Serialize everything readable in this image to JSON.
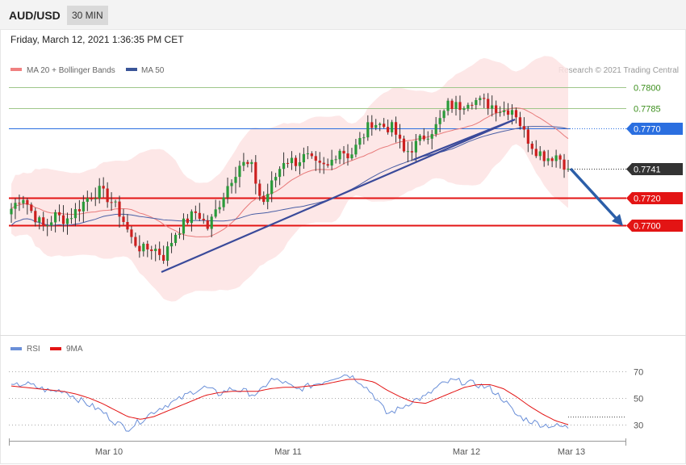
{
  "header": {
    "symbol": "AUD/USD",
    "timeframe": "30 MIN",
    "datetime": "Friday, March 12, 2021 1:36:35 PM CET"
  },
  "legend": {
    "ma20_bb": "MA 20 + Bollinger Bands",
    "ma50": "MA 50",
    "credit": "Research © 2021 Trading Central",
    "rsi": "RSI",
    "rsi_ma": "9MA"
  },
  "colors": {
    "bull": "#2a9a3a",
    "bear": "#cc1f1f",
    "ma20": "#e87a7a",
    "band_fill": "#fde3e3",
    "ma50": "#4a5fa5",
    "resistance_green": "#9fc78a",
    "blue_level": "#2b6fe0",
    "support_red": "#e31414",
    "trendline": "#3a4a9a",
    "arrow": "#2b5ea8",
    "rsi": "#6a8fd8",
    "rsi_ma": "#e31414"
  },
  "chart_data": [
    {
      "type": "candlestick",
      "title": "AUD/USD 30 MIN",
      "ylim": [
        0.764,
        0.781
      ],
      "x_ticks": [
        "Mar 10",
        "Mar 11",
        "Mar 12",
        "Mar 13"
      ],
      "levels": [
        {
          "value": 0.78,
          "label": "0.7800",
          "kind": "resistance"
        },
        {
          "value": 0.7785,
          "label": "0.7785",
          "kind": "resistance"
        },
        {
          "value": 0.777,
          "label": "0.7770",
          "kind": "pivot"
        },
        {
          "value": 0.7741,
          "label": "0.7741",
          "kind": "last"
        },
        {
          "value": 0.772,
          "label": "0.7720",
          "kind": "support"
        },
        {
          "value": 0.77,
          "label": "0.7700",
          "kind": "support"
        }
      ],
      "key_closes": [
        0.7712,
        0.7722,
        0.7708,
        0.7698,
        0.7707,
        0.7704,
        0.7711,
        0.772,
        0.7725,
        0.7719,
        0.7708,
        0.769,
        0.7682,
        0.7684,
        0.7677,
        0.7694,
        0.7703,
        0.771,
        0.7698,
        0.7715,
        0.7732,
        0.7745,
        0.7742,
        0.7715,
        0.7732,
        0.7748,
        0.7746,
        0.775,
        0.7742,
        0.7742,
        0.7756,
        0.775,
        0.7762,
        0.7775,
        0.7772,
        0.777,
        0.7752,
        0.7758,
        0.7766,
        0.7772,
        0.7787,
        0.7786,
        0.7792,
        0.7789,
        0.7787,
        0.7783,
        0.7785,
        0.7766,
        0.7755,
        0.7749,
        0.7751,
        0.7741
      ],
      "last": 0.7741
    },
    {
      "type": "line",
      "title": "RSI",
      "ylim": [
        20,
        80
      ],
      "y_ticks": [
        70,
        50,
        30
      ],
      "series": [
        {
          "name": "RSI",
          "values": [
            58,
            61,
            58,
            55,
            56,
            50,
            45,
            40,
            32,
            27,
            33,
            40,
            45,
            49,
            55,
            58,
            53,
            57,
            55,
            52,
            64,
            62,
            56,
            59,
            62,
            66,
            68,
            62,
            52,
            38,
            42,
            48,
            51,
            59,
            63,
            62,
            60,
            57,
            49,
            37,
            33,
            30,
            29,
            28
          ]
        },
        {
          "name": "9MA",
          "values": [
            59,
            58,
            57,
            56,
            55,
            53,
            50,
            46,
            41,
            36,
            34,
            36,
            40,
            44,
            48,
            52,
            54,
            55,
            55,
            55,
            57,
            58,
            58,
            59,
            60,
            62,
            64,
            64,
            62,
            56,
            51,
            47,
            46,
            50,
            54,
            58,
            60,
            60,
            57,
            51,
            44,
            38,
            33,
            30
          ]
        }
      ]
    }
  ]
}
